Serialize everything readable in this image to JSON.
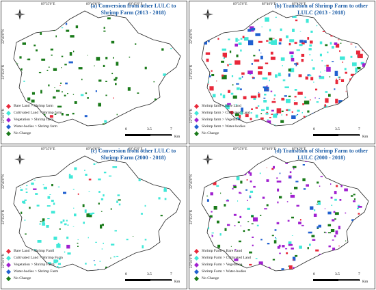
{
  "panels": [
    {
      "id": "a",
      "title": "(a) Conversion from other LULC to Shrimp Farm (2013 - 2018)",
      "lon_top": [
        "89°35'0\"E",
        "89°40'0\"E",
        "89°45'0\"E"
      ],
      "lat_left": [
        "22°40'0\"N",
        "22°35'0\"N",
        "22°30'0\"N"
      ],
      "legend": [
        {
          "label": "Bare Land > Shrimp farm",
          "color": "#e8283a"
        },
        {
          "label": "Cultivated Land > Shrimp farm",
          "color": "#40e8d8"
        },
        {
          "label": "Vegetation > Shrimp farm",
          "color": "#a020d0"
        },
        {
          "label": "Water-bodies > Shrimp farm",
          "color": "#2060d0"
        },
        {
          "label": "No Change",
          "color": "#1a7a1a"
        }
      ],
      "scale": {
        "ticks": [
          "0",
          "3.5",
          "7"
        ],
        "unit": "Km"
      }
    },
    {
      "id": "b",
      "title": "(b) Transition of Shrimp Farm to other LULC (2013 - 2018)",
      "lon_top": [
        "89°35'0\"E",
        "89°40'0\"E",
        "89°45'0\"E"
      ],
      "lat_left": [
        "22°40'0\"N",
        "22°35'0\"N",
        "22°30'0\"N"
      ],
      "legend": [
        {
          "label": "Shrimp farm > Bare Land",
          "color": "#e8283a"
        },
        {
          "label": "Shrimp farm > Cultivated Land",
          "color": "#40e8d8"
        },
        {
          "label": "Shrimp farm > Vegetation",
          "color": "#a020d0"
        },
        {
          "label": "Shrimp farm > Water-bodies",
          "color": "#2060d0"
        },
        {
          "label": "No Change",
          "color": "#1a7a1a"
        }
      ],
      "scale": {
        "ticks": [
          "0",
          "3.5",
          "7"
        ],
        "unit": "Km"
      }
    },
    {
      "id": "c",
      "title": "(c) Conversion from other LULC to Shrimp Farm (2000 - 2018)",
      "lon_top": [
        "89°35'0\"E",
        "89°40'0\"E",
        "89°45'0\"E"
      ],
      "lat_left": [
        "22°40'0\"N",
        "22°35'0\"N",
        "22°30'0\"N"
      ],
      "legend": [
        {
          "label": "Bare Land > Shrimp Farm",
          "color": "#e8283a"
        },
        {
          "label": "Cultivated Land > Shrimp Farm",
          "color": "#40e8d8"
        },
        {
          "label": "Vegetation > Shrimp Farm",
          "color": "#a020d0"
        },
        {
          "label": "Water-bodies > Shrimp Farm",
          "color": "#2060d0"
        },
        {
          "label": "No Change",
          "color": "#1a7a1a"
        }
      ],
      "scale": {
        "ticks": [
          "0",
          "3.5",
          "7"
        ],
        "unit": "Km"
      }
    },
    {
      "id": "d",
      "title": "(d) Transition of Shrimp Farm to other LULC (2000 - 2018)",
      "lon_top": [
        "89°35'0\"E",
        "89°40'0\"E",
        "89°45'0\"E"
      ],
      "lat_left": [
        "22°40'0\"N",
        "22°35'0\"N",
        "22°30'0\"N"
      ],
      "legend": [
        {
          "label": "Shrimp Farm > Bare Land",
          "color": "#e8283a"
        },
        {
          "label": "Shrimp Farm > Cultivated Land",
          "color": "#40e8d8"
        },
        {
          "label": "Shrimp Farm > Vegetation",
          "color": "#a020d0"
        },
        {
          "label": "Shrimp Farm > Water-bodies",
          "color": "#2060d0"
        },
        {
          "label": "No Change",
          "color": "#1a7a1a"
        }
      ],
      "scale": {
        "ticks": [
          "0",
          "3.5",
          "7"
        ],
        "unit": "Km"
      }
    }
  ]
}
